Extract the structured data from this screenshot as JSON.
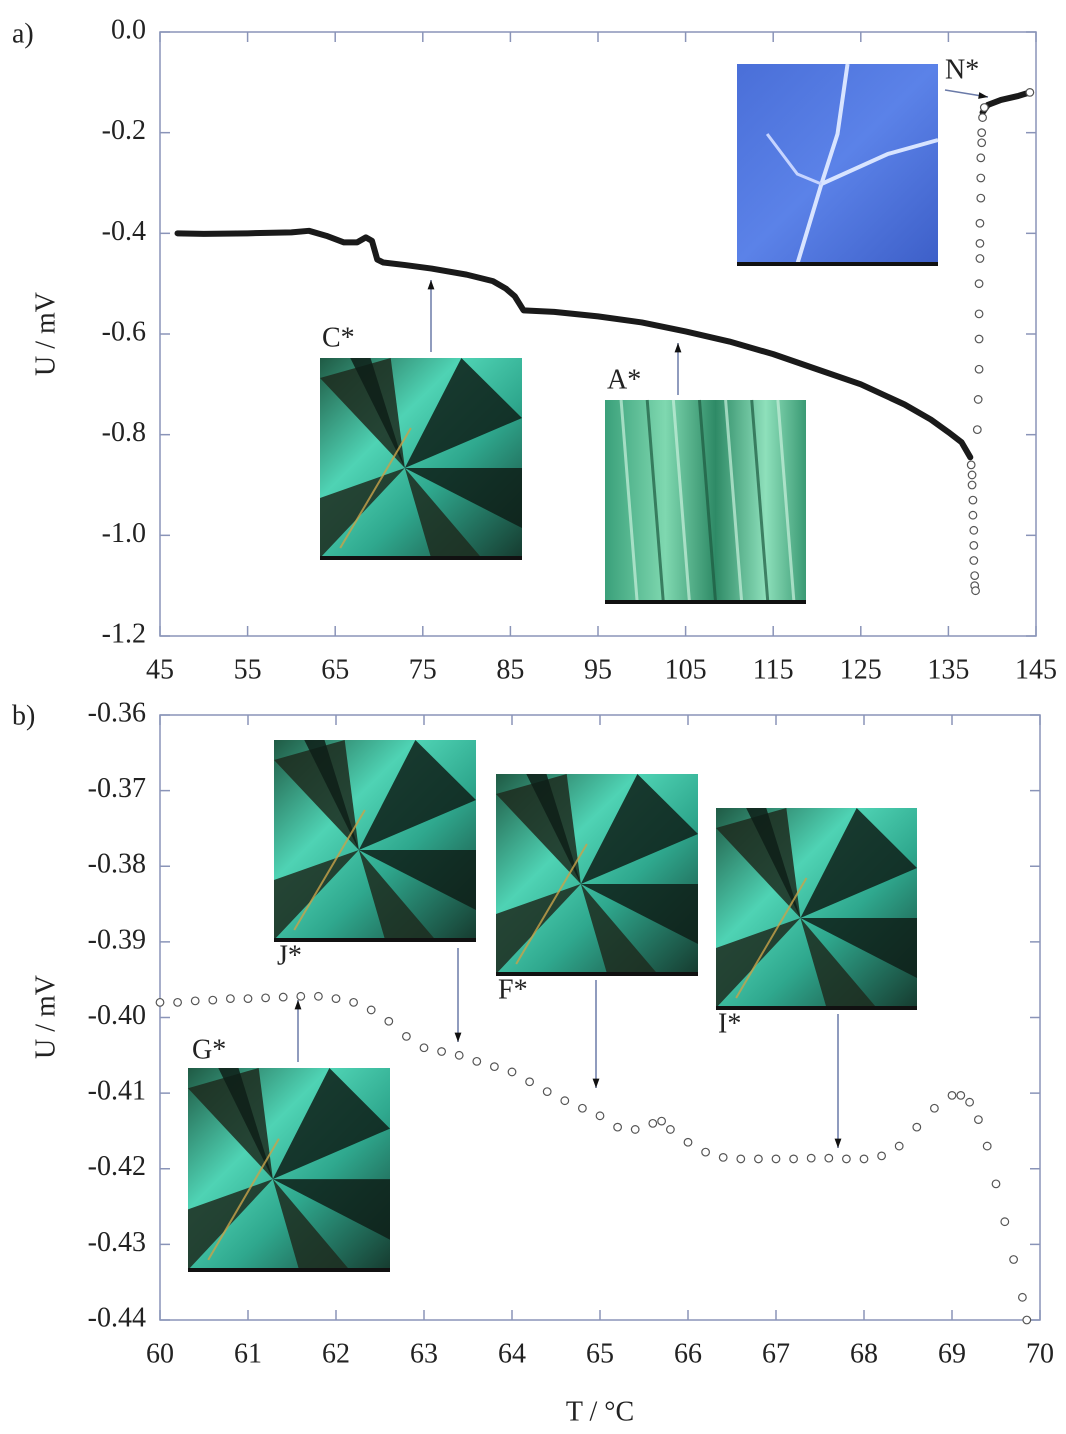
{
  "chart_data": [
    {
      "type": "line",
      "panel_label": "a)",
      "ylabel": "U / mV",
      "xlim": [
        45,
        145
      ],
      "xticks": [
        45,
        55,
        65,
        75,
        85,
        95,
        105,
        115,
        125,
        135,
        145
      ],
      "ylim": [
        -1.2,
        0
      ],
      "yticks": [
        {
          "value": 0,
          "label": "0.0"
        },
        -0.2,
        -0.4,
        -0.6,
        -0.8,
        {
          "value": -1,
          "label": "-1.0"
        },
        -1.2
      ],
      "annotations": [
        "C*",
        "A*",
        "N*"
      ],
      "series": [
        {
          "style": "line",
          "color": "#1a1a1a",
          "x": [
            47,
            50,
            55,
            60,
            62,
            64,
            66,
            67.5,
            68.5,
            69.2,
            69.8,
            70.5,
            73,
            76,
            80,
            83,
            84.5,
            85.5,
            86.5,
            90,
            95,
            100,
            105,
            110,
            115,
            120,
            125,
            130,
            133,
            135,
            136.5,
            137.5,
            138,
            138.9,
            139.5,
            141,
            143,
            144.3
          ],
          "values": [
            -0.4,
            -0.401,
            -0.4,
            -0.398,
            -0.395,
            -0.405,
            -0.418,
            -0.418,
            -0.408,
            -0.415,
            -0.452,
            -0.458,
            -0.463,
            -0.47,
            -0.482,
            -0.495,
            -0.51,
            -0.525,
            -0.553,
            -0.556,
            -0.565,
            -0.577,
            -0.595,
            -0.615,
            -0.64,
            -0.67,
            -0.7,
            -0.74,
            -0.77,
            -0.795,
            -0.815,
            -0.845,
            null,
            -0.16,
            -0.145,
            -0.135,
            -0.127,
            -0.12
          ]
        },
        {
          "style": "markers",
          "color": "#555555",
          "x": [
            137.6,
            137.7,
            137.7,
            137.8,
            137.8,
            137.9,
            137.9,
            137.9,
            138,
            138,
            138.1,
            138.3,
            138.4,
            138.5,
            138.5,
            138.5,
            138.5,
            138.6,
            138.6,
            138.6,
            138.7,
            138.7,
            138.7,
            138.8,
            138.8,
            138.9,
            139.1,
            144.3
          ],
          "values": [
            -0.86,
            -0.88,
            -0.9,
            -0.93,
            -0.96,
            -0.99,
            -1.02,
            -1.05,
            -1.08,
            -1.1,
            -1.11,
            -0.79,
            -0.73,
            -0.67,
            -0.61,
            -0.56,
            -0.5,
            -0.45,
            -0.42,
            -0.38,
            -0.33,
            -0.29,
            -0.25,
            -0.22,
            -0.2,
            -0.17,
            -0.15,
            -0.12
          ]
        }
      ]
    },
    {
      "type": "scatter",
      "panel_label": "b)",
      "ylabel": "U / mV",
      "xlabel": "T / °C",
      "xlim": [
        60,
        70
      ],
      "xticks": [
        60,
        61,
        62,
        63,
        64,
        65,
        66,
        67,
        68,
        69,
        70
      ],
      "ylim": [
        -0.44,
        -0.36
      ],
      "yticks": [
        -0.36,
        -0.37,
        -0.38,
        -0.39,
        {
          "value": -0.4,
          "label": "-0.40"
        },
        -0.41,
        -0.42,
        -0.43,
        -0.44
      ],
      "annotations": [
        "J*",
        "F*",
        "I*",
        "G*"
      ],
      "series": [
        {
          "style": "markers",
          "color": "#555555",
          "x": [
            60,
            60.2,
            60.4,
            60.6,
            60.8,
            61,
            61.2,
            61.4,
            61.6,
            61.8,
            62,
            62.2,
            62.4,
            62.6,
            62.8,
            63,
            63.2,
            63.4,
            63.6,
            63.8,
            64,
            64.2,
            64.4,
            64.6,
            64.8,
            65,
            65.2,
            65.4,
            65.6,
            65.7,
            65.8,
            66,
            66.2,
            66.4,
            66.6,
            66.8,
            67,
            67.2,
            67.4,
            67.6,
            67.8,
            68,
            68.2,
            68.4,
            68.6,
            68.8,
            69,
            69.1,
            69.2,
            69.3,
            69.4,
            69.5,
            69.6,
            69.7,
            69.8,
            69.85
          ],
          "values": [
            -0.398,
            -0.398,
            -0.3978,
            -0.3977,
            -0.3975,
            -0.3975,
            -0.3974,
            -0.3973,
            -0.3972,
            -0.3972,
            -0.3975,
            -0.398,
            -0.399,
            -0.4005,
            -0.4025,
            -0.404,
            -0.4045,
            -0.405,
            -0.4058,
            -0.4065,
            -0.4072,
            -0.4085,
            -0.4098,
            -0.411,
            -0.412,
            -0.413,
            -0.4145,
            -0.4148,
            -0.414,
            -0.4137,
            -0.4148,
            -0.4165,
            -0.4178,
            -0.4185,
            -0.4187,
            -0.4187,
            -0.4187,
            -0.4187,
            -0.4186,
            -0.4186,
            -0.4187,
            -0.4187,
            -0.4183,
            -0.417,
            -0.4145,
            -0.412,
            -0.4103,
            -0.4103,
            -0.4112,
            -0.4135,
            -0.417,
            -0.422,
            -0.427,
            -0.432,
            -0.437,
            -0.44
          ]
        }
      ]
    }
  ]
}
